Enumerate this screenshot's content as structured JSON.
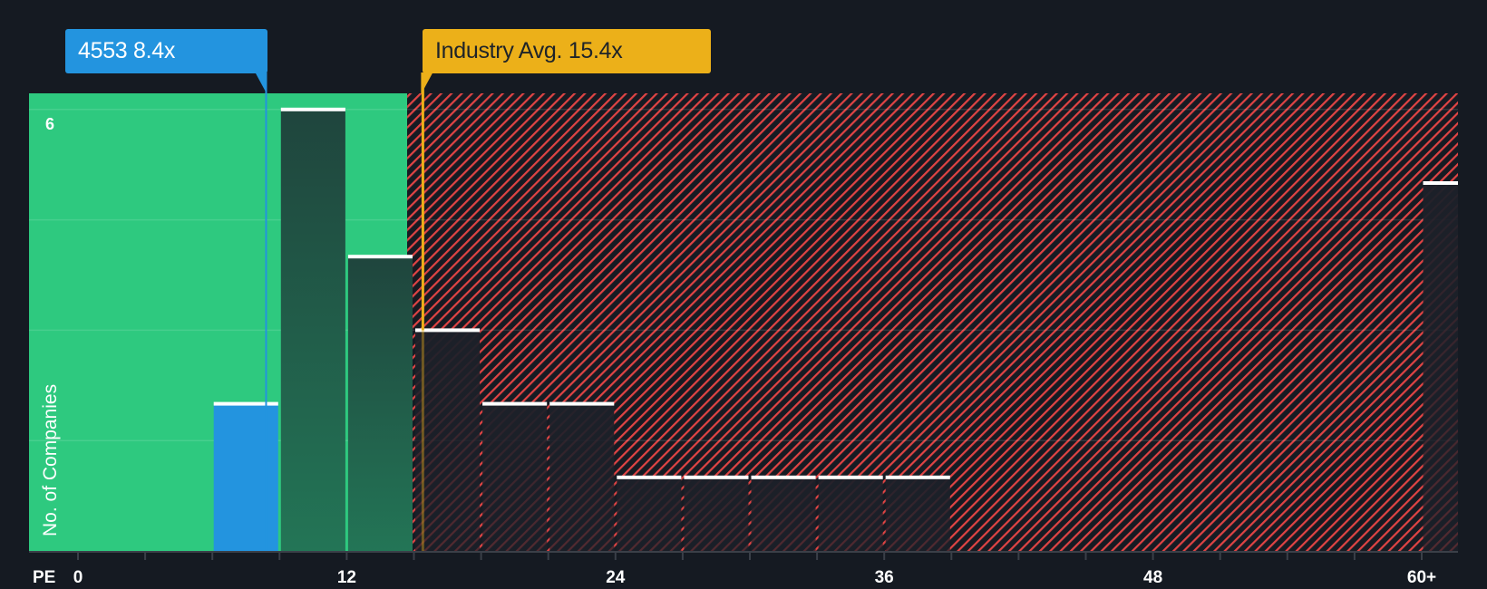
{
  "chart_data": {
    "type": "bar",
    "title": "",
    "xlabel": "PE",
    "ylabel": "No. of Companies",
    "x_tick_labels": [
      "0",
      "12",
      "24",
      "36",
      "48",
      "60+"
    ],
    "x_tick_values": [
      0,
      12,
      24,
      36,
      48,
      60
    ],
    "y_tick_labels": [
      "6"
    ],
    "ylim": [
      0,
      6.4
    ],
    "grid": true,
    "bin_width": 3,
    "bins": [
      {
        "range": "6-9",
        "start": 6,
        "end": 9,
        "count": 2,
        "highlight": true
      },
      {
        "range": "9-12",
        "start": 9,
        "end": 12,
        "count": 6
      },
      {
        "range": "12-15",
        "start": 12,
        "end": 15,
        "count": 4
      },
      {
        "range": "15-18",
        "start": 15,
        "end": 18,
        "count": 3
      },
      {
        "range": "18-21",
        "start": 18,
        "end": 21,
        "count": 2
      },
      {
        "range": "21-24",
        "start": 21,
        "end": 24,
        "count": 2
      },
      {
        "range": "24-27",
        "start": 24,
        "end": 27,
        "count": 1
      },
      {
        "range": "27-30",
        "start": 27,
        "end": 30,
        "count": 1
      },
      {
        "range": "30-33",
        "start": 30,
        "end": 33,
        "count": 1
      },
      {
        "range": "33-36",
        "start": 33,
        "end": 36,
        "count": 1
      },
      {
        "range": "36-39",
        "start": 36,
        "end": 39,
        "count": 1
      },
      {
        "range": "60+",
        "start": 60,
        "end": 61.5,
        "count": 5
      }
    ],
    "annotations": [
      {
        "label": "4553 8.4x",
        "value": 8.4,
        "color": "#2394df"
      },
      {
        "label": "Industry Avg. 15.4x",
        "value": 15.4,
        "color": "#ecb019"
      }
    ],
    "zones": [
      {
        "name": "undervalued",
        "from": -2.2,
        "to": 14.7,
        "color": "#2ec97f"
      },
      {
        "name": "overvalued",
        "from": 14.7,
        "to": 61.5,
        "color": "#e04444",
        "pattern": "diagonal-hatch"
      }
    ]
  },
  "labels": {
    "company_callout": "4553 8.4x",
    "industry_callout": "Industry Avg. 15.4x",
    "y_axis": "No. of Companies",
    "y_top_tick": "6",
    "x_axis": "PE",
    "x_ticks": [
      "0",
      "12",
      "24",
      "36",
      "48",
      "60+"
    ]
  },
  "colors": {
    "background": "#151a22",
    "green_zone": "#2ec97f",
    "hatch": "#e04444",
    "company": "#2394df",
    "industry": "#ecb019",
    "bar_green_zone": "#1f4a3d",
    "bar_top": "#ffffff"
  }
}
